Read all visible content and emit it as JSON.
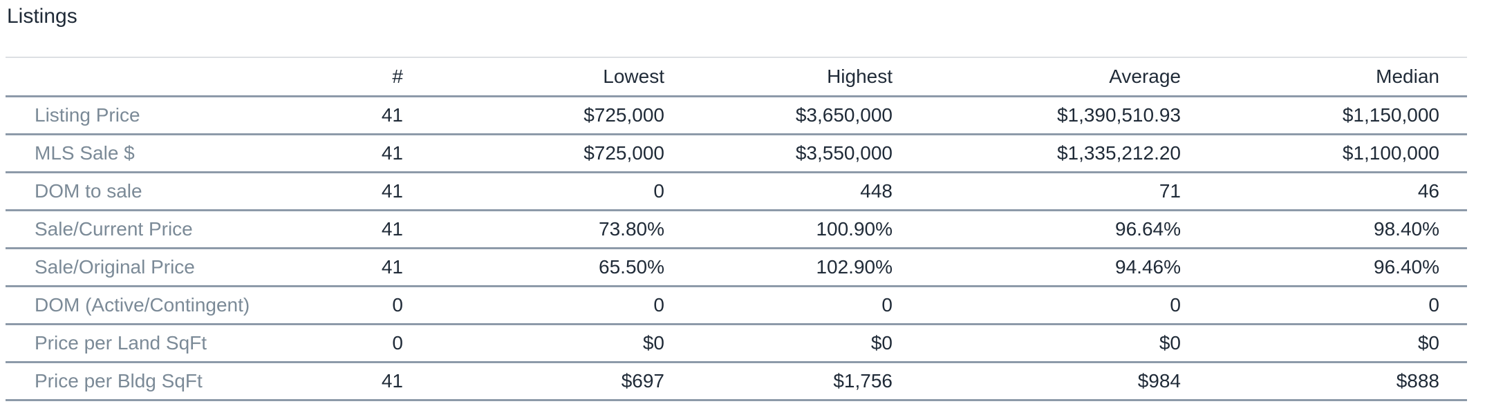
{
  "page": {
    "title": "Listings"
  },
  "table": {
    "columns": [
      "",
      "#",
      "Lowest",
      "Highest",
      "Average",
      "Median"
    ],
    "rows": [
      {
        "label": "Listing Price",
        "count": "41",
        "lowest": "$725,000",
        "highest": "$3,650,000",
        "average": "$1,390,510.93",
        "median": "$1,150,000"
      },
      {
        "label": "MLS Sale $",
        "count": "41",
        "lowest": "$725,000",
        "highest": "$3,550,000",
        "average": "$1,335,212.20",
        "median": "$1,100,000"
      },
      {
        "label": "DOM to sale",
        "count": "41",
        "lowest": "0",
        "highest": "448",
        "average": "71",
        "median": "46"
      },
      {
        "label": "Sale/Current Price",
        "count": "41",
        "lowest": "73.80%",
        "highest": "100.90%",
        "average": "96.64%",
        "median": "98.40%"
      },
      {
        "label": "Sale/Original Price",
        "count": "41",
        "lowest": "65.50%",
        "highest": "102.90%",
        "average": "94.46%",
        "median": "96.40%"
      },
      {
        "label": "DOM (Active/Contingent)",
        "count": "0",
        "lowest": "0",
        "highest": "0",
        "average": "0",
        "median": "0"
      },
      {
        "label": "Price per Land SqFt",
        "count": "0",
        "lowest": "$0",
        "highest": "$0",
        "average": "$0",
        "median": "$0"
      },
      {
        "label": "Price per Bldg SqFt",
        "count": "41",
        "lowest": "$697",
        "highest": "$1,756",
        "average": "$984",
        "median": "$888"
      }
    ]
  },
  "colors": {
    "background": "#ffffff",
    "title_text": "#1f2a37",
    "value_text": "#1f2a37",
    "label_text": "#7b8a97",
    "divider": "#8d9aa9",
    "top_divider": "#dcdfe3"
  }
}
